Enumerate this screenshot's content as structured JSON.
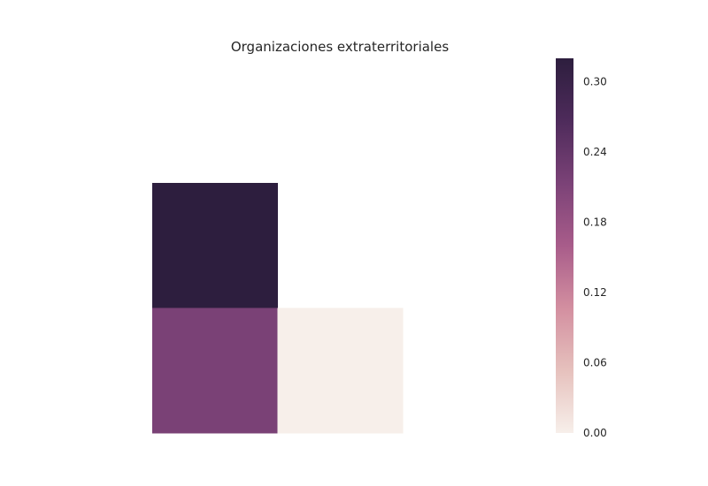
{
  "chart_data": {
    "type": "heatmap",
    "title": "Organizaciones extraterritoriales",
    "xlabel": "",
    "ylabel": "",
    "grid": [
      [
        0.32,
        null,
        null
      ],
      [
        0.215,
        0.0,
        null
      ]
    ],
    "row_offset_top_empty": 1,
    "colorbar": {
      "range": [
        0,
        0.32
      ],
      "ticks": [
        "0.00",
        "0.06",
        "0.12",
        "0.18",
        "0.24",
        "0.30"
      ],
      "tick_values": [
        0,
        0.06,
        0.12,
        0.18,
        0.24,
        0.3
      ]
    },
    "colormap": [
      "#f7efea",
      "#e6c1bd",
      "#d38fa0",
      "#a85c8a",
      "#7b4277",
      "#4e2b5b",
      "#2d1e3e"
    ]
  }
}
